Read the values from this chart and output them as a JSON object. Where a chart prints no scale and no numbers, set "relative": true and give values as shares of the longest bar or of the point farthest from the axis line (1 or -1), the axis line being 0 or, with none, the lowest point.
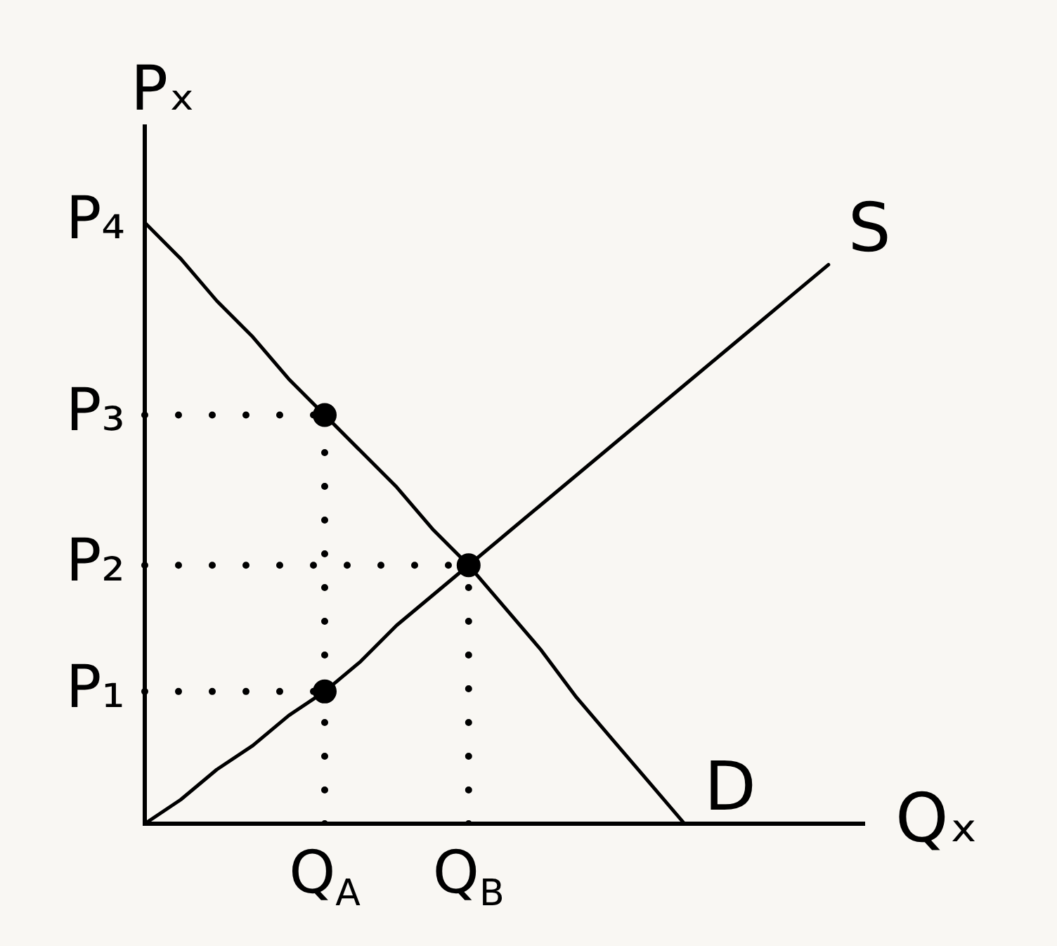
{
  "chart_data": {
    "type": "line",
    "relative": true,
    "xlabel": "Qₓ",
    "ylabel": "Pₓ",
    "categories": [
      null,
      null,
      null,
      null,
      null,
      "Q$_{A}$",
      null,
      null,
      null,
      "Q$_{B}$",
      null,
      null,
      null,
      null,
      null,
      null,
      null,
      null,
      null,
      null,
      null
    ],
    "series": [
      {
        "name": "S",
        "color": "#000000",
        "values": [
          0,
          0.04,
          0.09,
          0.13,
          0.18,
          0.22,
          0.27,
          0.33,
          0.38,
          0.43,
          0.48,
          0.53,
          0.58,
          0.63,
          0.68,
          0.73,
          0.78,
          0.83,
          0.88,
          0.93,
          null
        ]
      },
      {
        "name": "D",
        "color": "#000000",
        "values": [
          1,
          0.94,
          0.87,
          0.81,
          0.74,
          0.68,
          0.62,
          0.56,
          0.49,
          0.43,
          0.36,
          0.29,
          0.21,
          0.14,
          0.07,
          0,
          null,
          null,
          null,
          null,
          null
        ]
      },
      {
        "type": "line",
        "color": "#000000",
        "line_style": "dotted",
        "x": [
          "Q$_{A}$",
          "Q$_{A}$"
        ],
        "values": [
          0,
          0.68
        ]
      },
      {
        "type": "line",
        "color": "#000000",
        "line_style": "dotted",
        "x": [
          "Q$_{B}$",
          "Q$_{B}$"
        ],
        "values": [
          0,
          0.43
        ]
      },
      {
        "type": "scatter",
        "color": "#000000",
        "marker": "circle",
        "x": [
          "Q$_{A}$",
          "Q$_{B}$",
          "Q$_{A}$"
        ],
        "values": [
          0.68,
          0.43,
          0.22
        ]
      }
    ],
    "ref_lines": [
      {
        "axis": "y",
        "value": 0.68,
        "label": "P₃",
        "line_style": "dotted",
        "color": "#000000"
      },
      {
        "axis": "y",
        "value": 0.43,
        "label": "P₂",
        "line_style": "dotted",
        "color": "#000000"
      },
      {
        "axis": "y",
        "value": 0.22,
        "label": "P₁",
        "line_style": "dotted",
        "color": "#000000"
      }
    ],
    "annotations": [
      "P₄"
    ],
    "marker": "none",
    "legend": false,
    "grid": false,
    "tick_labels": "x"
  }
}
